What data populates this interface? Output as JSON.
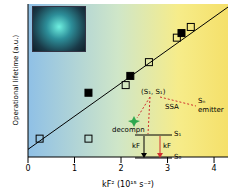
{
  "chart_data": {
    "type": "scatter",
    "x_label": "kF² (10¹⁵ s⁻²)",
    "y_label": "Operational lifetime (a.u.)",
    "xlim": [
      0,
      4.3
    ],
    "xticks": [
      0,
      1,
      2,
      3,
      4
    ],
    "ylim": [
      0,
      1
    ],
    "tick_labels": "x",
    "grid": false,
    "series": [
      {
        "type": "scatter",
        "marker": "square_filled",
        "color": "#000000",
        "x": [
          1.3,
          2.2,
          3.3
        ],
        "values": [
          0.42,
          0.53,
          0.81
        ]
      },
      {
        "type": "scatter",
        "marker": "square_open",
        "color": "#000000",
        "x": [
          0.25,
          1.3,
          2.1,
          2.6,
          3.2,
          3.5
        ],
        "values": [
          0.12,
          0.12,
          0.47,
          0.62,
          0.78,
          0.85
        ]
      },
      {
        "type": "line",
        "line_style": "solid",
        "color": "#000000",
        "x": [
          0,
          4.3
        ],
        "values": [
          0.05,
          0.98
        ]
      }
    ],
    "annotations": [
      "(S₁, S₁)",
      "SSA",
      "Sₙ",
      "emitter",
      "decompn",
      "S₁",
      "S₀",
      "kF",
      "kF"
    ]
  }
}
